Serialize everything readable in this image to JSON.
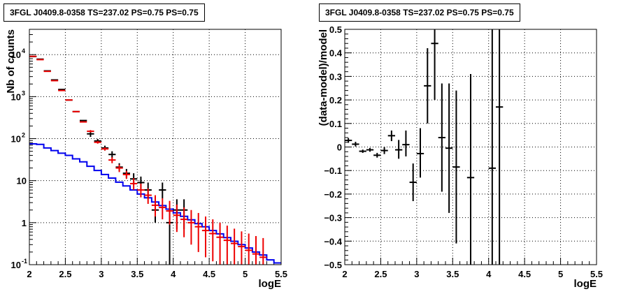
{
  "chart_data": [
    {
      "type": "scatter",
      "title": "3FGL J0409.8-0358 TS=237.02 PS=0.75 PS=0.75",
      "xlabel": "logE",
      "ylabel": "Nb of counts",
      "xlim": [
        2,
        5.5
      ],
      "ylim": [
        0.1,
        40000
      ],
      "yscale": "log",
      "grid": true,
      "x_ticks": [
        {
          "v": 2,
          "t": "2"
        },
        {
          "v": 2.5,
          "t": "2.5"
        },
        {
          "v": 3,
          "t": "3"
        },
        {
          "v": 3.5,
          "t": "3.5"
        },
        {
          "v": 4,
          "t": "4"
        },
        {
          "v": 4.5,
          "t": "4.5"
        },
        {
          "v": 5,
          "t": "5"
        },
        {
          "v": 5.5,
          "t": "5.5"
        }
      ],
      "y_ticks": [
        {
          "v": 0.1,
          "t": "10",
          "e": "-1"
        },
        {
          "v": 1,
          "t": "1"
        },
        {
          "v": 10,
          "t": "10"
        },
        {
          "v": 100,
          "t": "10",
          "e": "2"
        },
        {
          "v": 1000,
          "t": "10",
          "e": "3"
        },
        {
          "v": 10000,
          "t": "10",
          "e": "4"
        }
      ],
      "steps": [
        {
          "color": "#0000ee",
          "edges": [
            2,
            2.1,
            2.2,
            2.3,
            2.4,
            2.5,
            2.6,
            2.7,
            2.8,
            2.9,
            3.0,
            3.1,
            3.2,
            3.3,
            3.4,
            3.5,
            3.6,
            3.7,
            3.8,
            3.9,
            4.0,
            4.1,
            4.2,
            4.3,
            4.4,
            4.5,
            4.6,
            4.7,
            4.8,
            4.9,
            5.0,
            5.1,
            5.2,
            5.3,
            5.4,
            5.5
          ],
          "values": [
            75,
            73,
            60,
            52,
            45,
            40,
            33,
            28,
            22,
            17.5,
            14,
            11.5,
            9.2,
            7.5,
            6,
            4.8,
            3.9,
            3.1,
            2.55,
            2.1,
            1.72,
            1.42,
            1.17,
            0.95,
            0.8,
            0.65,
            0.54,
            0.44,
            0.36,
            0.3,
            0.25,
            0.2,
            0.17,
            0.13,
            0.11
          ]
        }
      ],
      "series": [
        {
          "color": "#000000",
          "points": [
            {
              "x": 2.05,
              "y": 9000,
              "lo": 9000,
              "hi": 9000
            },
            {
              "x": 2.15,
              "y": 7800,
              "lo": 7800,
              "hi": 7800
            },
            {
              "x": 2.25,
              "y": 4100,
              "lo": 4100,
              "hi": 4100
            },
            {
              "x": 2.35,
              "y": 2500,
              "lo": 2500,
              "hi": 2500
            },
            {
              "x": 2.45,
              "y": 1480,
              "lo": 1480,
              "hi": 1480
            },
            {
              "x": 2.55,
              "y": 830,
              "lo": 830,
              "hi": 830
            },
            {
              "x": 2.65,
              "y": 440,
              "lo": 440,
              "hi": 440
            },
            {
              "x": 2.75,
              "y": 270,
              "lo": 270,
              "hi": 270
            },
            {
              "x": 2.85,
              "y": 130,
              "lo": 110,
              "hi": 150
            },
            {
              "x": 2.95,
              "y": 88,
              "lo": 78,
              "hi": 98
            },
            {
              "x": 3.05,
              "y": 60,
              "lo": 52,
              "hi": 68
            },
            {
              "x": 3.15,
              "y": 42,
              "lo": 35,
              "hi": 50
            },
            {
              "x": 3.25,
              "y": 21,
              "lo": 17,
              "hi": 26
            },
            {
              "x": 3.35,
              "y": 15,
              "lo": 11.5,
              "hi": 19
            },
            {
              "x": 3.45,
              "y": 11,
              "lo": 8,
              "hi": 15
            },
            {
              "x": 3.55,
              "y": 9,
              "lo": 6.2,
              "hi": 12.5
            },
            {
              "x": 3.65,
              "y": 6,
              "lo": 3.8,
              "hi": 9
            },
            {
              "x": 3.75,
              "y": 2,
              "lo": 1,
              "hi": 3.6
            },
            {
              "x": 3.85,
              "y": 6,
              "lo": 3.8,
              "hi": 9
            },
            {
              "x": 3.95,
              "y": 1,
              "lo": 0.1,
              "hi": 2.3
            },
            {
              "x": 4.05,
              "y": 2,
              "lo": 0.7,
              "hi": 3.6
            },
            {
              "x": 4.15,
              "y": 2,
              "lo": 0.7,
              "hi": 3.6
            }
          ]
        },
        {
          "color": "#ee0000",
          "points": [
            {
              "x": 2.05,
              "y": 9100,
              "lo": 9100,
              "hi": 9100
            },
            {
              "x": 2.15,
              "y": 7600,
              "lo": 7600,
              "hi": 7600
            },
            {
              "x": 2.25,
              "y": 4000,
              "lo": 4000,
              "hi": 4000
            },
            {
              "x": 2.35,
              "y": 2400,
              "lo": 2400,
              "hi": 2400
            },
            {
              "x": 2.45,
              "y": 1400,
              "lo": 1400,
              "hi": 1400
            },
            {
              "x": 2.55,
              "y": 830,
              "lo": 830,
              "hi": 830
            },
            {
              "x": 2.65,
              "y": 440,
              "lo": 440,
              "hi": 440
            },
            {
              "x": 2.75,
              "y": 250,
              "lo": 250,
              "hi": 250
            },
            {
              "x": 2.85,
              "y": 150,
              "lo": 140,
              "hi": 160
            },
            {
              "x": 2.95,
              "y": 82,
              "lo": 76,
              "hi": 88
            },
            {
              "x": 3.05,
              "y": 57,
              "lo": 52,
              "hi": 62
            },
            {
              "x": 3.15,
              "y": 31,
              "lo": 26,
              "hi": 36
            },
            {
              "x": 3.25,
              "y": 20,
              "lo": 16,
              "hi": 24
            },
            {
              "x": 3.35,
              "y": 14,
              "lo": 11,
              "hi": 17
            },
            {
              "x": 3.45,
              "y": 8.5,
              "lo": 6,
              "hi": 11.5
            },
            {
              "x": 3.55,
              "y": 6,
              "lo": 4,
              "hi": 8.5
            },
            {
              "x": 3.65,
              "y": 4.5,
              "lo": 2.8,
              "hi": 6.5
            },
            {
              "x": 3.75,
              "y": 2.6,
              "lo": 1.4,
              "hi": 4.5
            },
            {
              "x": 3.85,
              "y": 2.3,
              "lo": 1.2,
              "hi": 3.8
            },
            {
              "x": 3.95,
              "y": 1.9,
              "lo": 0.9,
              "hi": 3.3
            },
            {
              "x": 4.05,
              "y": 1.5,
              "lo": 0.6,
              "hi": 2.7
            },
            {
              "x": 4.15,
              "y": 1.2,
              "lo": 0.45,
              "hi": 2.3
            },
            {
              "x": 4.25,
              "y": 1,
              "lo": 0.3,
              "hi": 2.0
            },
            {
              "x": 4.35,
              "y": 0.8,
              "lo": 0.2,
              "hi": 1.7
            },
            {
              "x": 4.45,
              "y": 0.65,
              "lo": 0.15,
              "hi": 1.4
            },
            {
              "x": 4.55,
              "y": 0.55,
              "lo": 0.12,
              "hi": 1.2
            },
            {
              "x": 4.65,
              "y": 0.45,
              "lo": 0.1,
              "hi": 1.0
            },
            {
              "x": 4.75,
              "y": 0.38,
              "lo": 0.1,
              "hi": 0.85
            },
            {
              "x": 4.85,
              "y": 0.32,
              "lo": 0.1,
              "hi": 0.72
            },
            {
              "x": 4.95,
              "y": 0.27,
              "lo": 0.1,
              "hi": 0.62
            },
            {
              "x": 5.05,
              "y": 0.22,
              "lo": 0.1,
              "hi": 0.55
            },
            {
              "x": 5.15,
              "y": 0.18,
              "lo": 0.1,
              "hi": 0.48
            },
            {
              "x": 5.25,
              "y": 0.15,
              "lo": 0.1,
              "hi": 0.43
            }
          ]
        }
      ]
    },
    {
      "type": "scatter",
      "title": "3FGL J0409.8-0358 TS=237.02 PS=0.75 PS=0.75",
      "xlabel": "logE",
      "ylabel": "(data-model)/model",
      "xlim": [
        2,
        5.5
      ],
      "ylim": [
        -0.5,
        0.5
      ],
      "yscale": "linear",
      "grid": true,
      "x_ticks": [
        {
          "v": 2,
          "t": "2"
        },
        {
          "v": 2.5,
          "t": "2.5"
        },
        {
          "v": 3,
          "t": "3"
        },
        {
          "v": 3.5,
          "t": "3.5"
        },
        {
          "v": 4,
          "t": "4"
        },
        {
          "v": 4.5,
          "t": "4.5"
        },
        {
          "v": 5,
          "t": "5"
        },
        {
          "v": 5.5,
          "t": "5.5"
        }
      ],
      "y_ticks": [
        {
          "v": -0.5,
          "t": "−0.5"
        },
        {
          "v": -0.4,
          "t": "−0.4"
        },
        {
          "v": -0.3,
          "t": "−0.3"
        },
        {
          "v": -0.2,
          "t": "−0.2"
        },
        {
          "v": -0.1,
          "t": "−0.1"
        },
        {
          "v": 0,
          "t": "0"
        },
        {
          "v": 0.1,
          "t": "0.1"
        },
        {
          "v": 0.2,
          "t": "0.2"
        },
        {
          "v": 0.3,
          "t": "0.3"
        },
        {
          "v": 0.4,
          "t": "0.4"
        },
        {
          "v": 0.5,
          "t": "0.5"
        }
      ],
      "steps": [],
      "series": [
        {
          "color": "#000000",
          "points": [
            {
              "x": 2.05,
              "y": 0.028,
              "lo": 0.018,
              "hi": 0.038
            },
            {
              "x": 2.15,
              "y": 0.012,
              "lo": 0.002,
              "hi": 0.022
            },
            {
              "x": 2.25,
              "y": -0.018,
              "lo": -0.025,
              "hi": -0.011
            },
            {
              "x": 2.35,
              "y": -0.012,
              "lo": -0.02,
              "hi": -0.004
            },
            {
              "x": 2.45,
              "y": -0.035,
              "lo": -0.045,
              "hi": -0.025
            },
            {
              "x": 2.55,
              "y": -0.015,
              "lo": -0.03,
              "hi": 0.0
            },
            {
              "x": 2.65,
              "y": 0.048,
              "lo": 0.025,
              "hi": 0.07
            },
            {
              "x": 2.75,
              "y": -0.012,
              "lo": -0.05,
              "hi": 0.03
            },
            {
              "x": 2.85,
              "y": 0.01,
              "lo": -0.04,
              "hi": 0.07
            },
            {
              "x": 2.95,
              "y": -0.15,
              "lo": -0.23,
              "hi": -0.07
            },
            {
              "x": 3.05,
              "y": -0.028,
              "lo": -0.13,
              "hi": 0.08
            },
            {
              "x": 3.15,
              "y": 0.26,
              "lo": 0.1,
              "hi": 0.42
            },
            {
              "x": 3.25,
              "y": 0.44,
              "lo": 0.2,
              "hi": 0.5
            },
            {
              "x": 3.35,
              "y": 0.04,
              "lo": -0.19,
              "hi": 0.27
            },
            {
              "x": 3.45,
              "y": -0.005,
              "lo": -0.28,
              "hi": 0.27
            },
            {
              "x": 3.55,
              "y": -0.085,
              "lo": -0.41,
              "hi": 0.24
            },
            {
              "x": 3.75,
              "y": -0.13,
              "lo": -0.5,
              "hi": 0.31
            },
            {
              "x": 4.05,
              "y": -0.09,
              "lo": -0.5,
              "hi": 0.5
            },
            {
              "x": 4.15,
              "y": 0.17,
              "lo": -0.5,
              "hi": 0.5
            }
          ]
        }
      ]
    }
  ]
}
